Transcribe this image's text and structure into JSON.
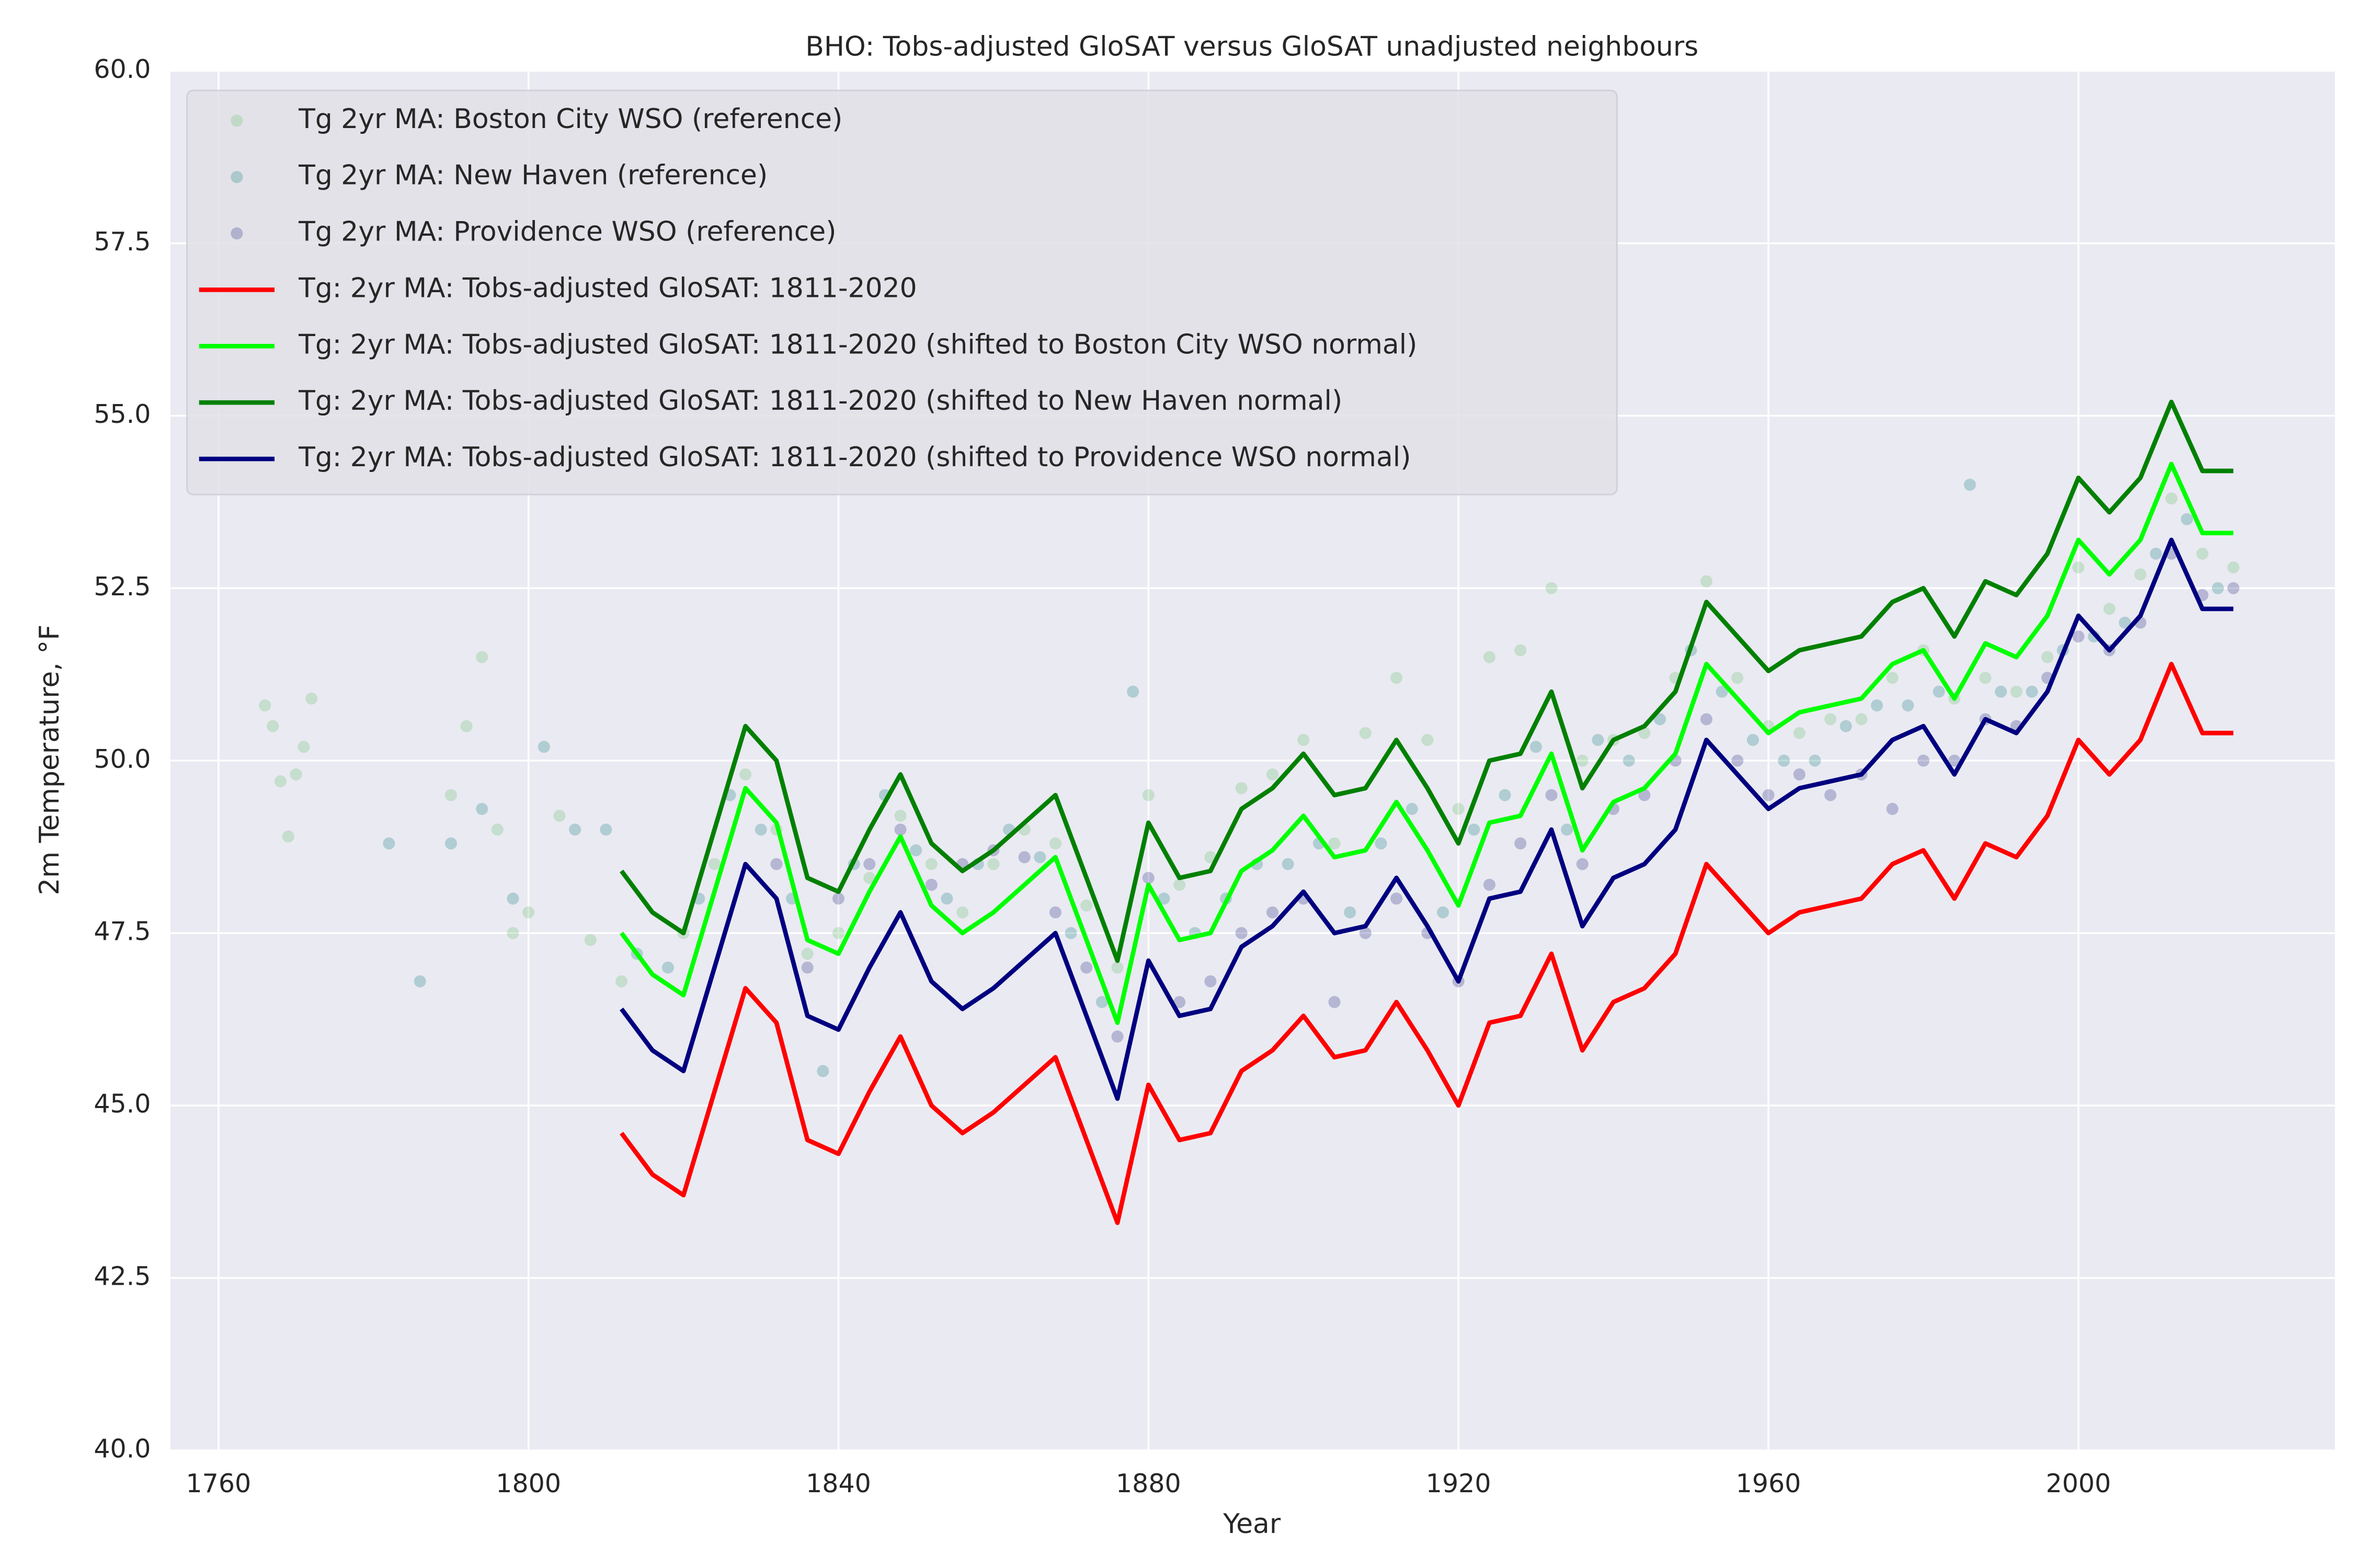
{
  "chart_data": {
    "type": "line",
    "title": "BHO: Tobs-adjusted GloSAT versus GloSAT unadjusted neighbours",
    "x_label": "Year",
    "y_label": "2m Temperature, °F",
    "xlim": [
      1753.8,
      2033.1
    ],
    "ylim": [
      40,
      60
    ],
    "xticks": [
      1760,
      1800,
      1840,
      1880,
      1920,
      1960,
      2000
    ],
    "yticks": [
      {
        "value": 40,
        "label": "40.0"
      },
      {
        "value": 42.5,
        "label": "42.5"
      },
      {
        "value": 45,
        "label": "45.0"
      },
      {
        "value": 47.5,
        "label": "47.5"
      },
      {
        "value": 50,
        "label": "50.0"
      },
      {
        "value": 52.5,
        "label": "52.5"
      },
      {
        "value": 55,
        "label": "55.0"
      },
      {
        "value": 57.5,
        "label": "57.5"
      },
      {
        "value": 60,
        "label": "60.0"
      }
    ],
    "grid": true,
    "legend": "upper left",
    "x": [
      1812,
      1816,
      1820,
      1824,
      1828,
      1832,
      1836,
      1840,
      1844,
      1848,
      1852,
      1856,
      1860,
      1864,
      1868,
      1872,
      1876,
      1880,
      1884,
      1888,
      1892,
      1896,
      1900,
      1904,
      1908,
      1912,
      1916,
      1920,
      1924,
      1928,
      1932,
      1936,
      1940,
      1944,
      1948,
      1952,
      1956,
      1960,
      1964,
      1968,
      1972,
      1976,
      1980,
      1984,
      1988,
      1992,
      1996,
      2000,
      2004,
      2008,
      2012,
      2016,
      2020
    ],
    "series": [
      {
        "name": "Tg 2yr MA: Boston City WSO (reference)",
        "type": "scatter",
        "color": "#74c476",
        "x": [
          1766,
          1767,
          1768,
          1769,
          1770,
          1771,
          1772,
          1790,
          1792,
          1794,
          1796,
          1798,
          1800,
          1804,
          1808,
          1812,
          1820,
          1824,
          1828,
          1832,
          1836,
          1840,
          1844,
          1848,
          1852,
          1856,
          1860,
          1864,
          1868,
          1872,
          1876,
          1880,
          1884,
          1888,
          1892,
          1896,
          1900,
          1904,
          1908,
          1912,
          1916,
          1920,
          1924,
          1928,
          1932,
          1936,
          1940,
          1944,
          1948,
          1952,
          1956,
          1960,
          1964,
          1968,
          1972,
          1976,
          1980,
          1984,
          1988,
          1992,
          1996,
          2000,
          2004,
          2008,
          2012,
          2016,
          2020
        ],
        "values": [
          50.8,
          50.5,
          49.7,
          48.9,
          49.8,
          50.2,
          50.9,
          49.5,
          50.5,
          51.5,
          49.0,
          47.5,
          47.8,
          49.2,
          47.4,
          46.8,
          47.5,
          48.5,
          49.8,
          49.0,
          47.2,
          47.5,
          48.3,
          49.2,
          48.5,
          47.8,
          48.5,
          49.0,
          48.8,
          47.9,
          47.0,
          49.5,
          48.2,
          48.6,
          49.6,
          49.8,
          50.3,
          48.8,
          50.4,
          51.2,
          50.3,
          49.3,
          51.5,
          51.6,
          52.5,
          50.0,
          50.3,
          50.4,
          51.2,
          52.6,
          51.2,
          50.5,
          50.4,
          50.6,
          50.6,
          51.2,
          51.6,
          50.9,
          51.2,
          51.0,
          51.5,
          52.8,
          52.2,
          52.7,
          53.8,
          53.0,
          52.8
        ]
      },
      {
        "name": "Tg 2yr MA: New Haven (reference)",
        "type": "scatter",
        "color": "#2a8c8c",
        "x": [
          1782,
          1786,
          1790,
          1794,
          1798,
          1802,
          1806,
          1810,
          1814,
          1818,
          1822,
          1826,
          1830,
          1834,
          1838,
          1842,
          1846,
          1850,
          1854,
          1858,
          1862,
          1866,
          1870,
          1874,
          1878,
          1882,
          1886,
          1890,
          1894,
          1898,
          1902,
          1906,
          1910,
          1914,
          1918,
          1922,
          1926,
          1930,
          1934,
          1938,
          1942,
          1946,
          1950,
          1954,
          1958,
          1962,
          1966,
          1970,
          1974,
          1978,
          1982,
          1986,
          1990,
          1994,
          1998,
          2002,
          2006,
          2010,
          2014,
          2018
        ],
        "values": [
          48.8,
          46.8,
          48.8,
          49.3,
          48.0,
          50.2,
          49.0,
          49.0,
          47.2,
          47.0,
          48.0,
          49.5,
          49.0,
          48.0,
          45.5,
          48.5,
          49.5,
          48.7,
          48.0,
          48.5,
          49.0,
          48.6,
          47.5,
          46.5,
          51.0,
          48.0,
          47.5,
          48.0,
          48.5,
          48.5,
          48.8,
          47.8,
          48.8,
          49.3,
          47.8,
          49.0,
          49.5,
          50.2,
          49.0,
          50.3,
          50.0,
          50.6,
          51.6,
          51.0,
          50.3,
          50.0,
          50.0,
          50.5,
          50.8,
          50.8,
          51.0,
          54.0,
          51.0,
          51.0,
          51.6,
          51.8,
          52.0,
          53.0,
          53.5,
          52.5
        ]
      },
      {
        "name": "Tg 2yr MA: Providence WSO (reference)",
        "type": "scatter",
        "color": "#3b3f8c",
        "x": [
          1832,
          1836,
          1840,
          1844,
          1848,
          1852,
          1856,
          1860,
          1864,
          1868,
          1872,
          1876,
          1880,
          1884,
          1888,
          1892,
          1896,
          1900,
          1904,
          1908,
          1912,
          1916,
          1920,
          1924,
          1928,
          1932,
          1936,
          1940,
          1944,
          1948,
          1952,
          1956,
          1960,
          1964,
          1968,
          1972,
          1976,
          1980,
          1984,
          1988,
          1992,
          1996,
          2000,
          2004,
          2008,
          2012,
          2016,
          2020
        ],
        "values": [
          48.5,
          47.0,
          48.0,
          48.5,
          49.0,
          48.2,
          48.5,
          48.7,
          48.6,
          47.8,
          47.0,
          46.0,
          48.3,
          46.5,
          46.8,
          47.5,
          47.8,
          48.0,
          46.5,
          47.5,
          48.0,
          47.5,
          46.8,
          48.2,
          48.8,
          49.5,
          48.5,
          49.3,
          49.5,
          50.0,
          50.6,
          50.0,
          49.5,
          49.8,
          49.5,
          49.8,
          49.3,
          50.0,
          50.0,
          50.6,
          50.5,
          51.2,
          51.8,
          51.6,
          52.0,
          53.0,
          52.4,
          52.5
        ]
      },
      {
        "name": "Tg: 2yr MA: Tobs-adjusted GloSAT: 1811-2020",
        "type": "line",
        "color": "#ff0000",
        "values": [
          44.6,
          44.0,
          43.7,
          45.2,
          46.7,
          46.2,
          44.5,
          44.3,
          45.2,
          46.0,
          45.0,
          44.6,
          44.9,
          45.3,
          45.7,
          44.5,
          43.3,
          45.3,
          44.5,
          44.6,
          45.5,
          45.8,
          46.3,
          45.7,
          45.8,
          46.5,
          45.8,
          45.0,
          46.2,
          46.3,
          47.2,
          45.8,
          46.5,
          46.7,
          47.2,
          48.5,
          48.0,
          47.5,
          47.8,
          47.9,
          48.0,
          48.5,
          48.7,
          48.0,
          48.8,
          48.6,
          49.2,
          50.3,
          49.8,
          50.3,
          51.4,
          50.4,
          50.4
        ]
      },
      {
        "name": "Tg: 2yr MA: Tobs-adjusted GloSAT: 1811-2020 (shifted to Boston City WSO normal)",
        "type": "line",
        "color": "#00ff00",
        "values": [
          47.5,
          46.9,
          46.6,
          48.1,
          49.6,
          49.1,
          47.4,
          47.2,
          48.1,
          48.9,
          47.9,
          47.5,
          47.8,
          48.2,
          48.6,
          47.4,
          46.2,
          48.2,
          47.4,
          47.5,
          48.4,
          48.7,
          49.2,
          48.6,
          48.7,
          49.4,
          48.7,
          47.9,
          49.1,
          49.2,
          50.1,
          48.7,
          49.4,
          49.6,
          50.1,
          51.4,
          50.9,
          50.4,
          50.7,
          50.8,
          50.9,
          51.4,
          51.6,
          50.9,
          51.7,
          51.5,
          52.1,
          53.2,
          52.7,
          53.2,
          54.3,
          53.3,
          53.3
        ]
      },
      {
        "name": "Tg: 2yr MA: Tobs-adjusted GloSAT: 1811-2020 (shifted to New Haven normal)",
        "type": "line",
        "color": "#008000",
        "values": [
          48.4,
          47.8,
          47.5,
          49.0,
          50.5,
          50.0,
          48.3,
          48.1,
          49.0,
          49.8,
          48.8,
          48.4,
          48.7,
          49.1,
          49.5,
          48.3,
          47.1,
          49.1,
          48.3,
          48.4,
          49.3,
          49.6,
          50.1,
          49.5,
          49.6,
          50.3,
          49.6,
          48.8,
          50.0,
          50.1,
          51.0,
          49.6,
          50.3,
          50.5,
          51.0,
          52.3,
          51.8,
          51.3,
          51.6,
          51.7,
          51.8,
          52.3,
          52.5,
          51.8,
          52.6,
          52.4,
          53.0,
          54.1,
          53.6,
          54.1,
          55.2,
          54.2,
          54.2
        ]
      },
      {
        "name": "Tg: 2yr MA: Tobs-adjusted GloSAT: 1811-2020 (shifted to Providence WSO normal)",
        "type": "line",
        "color": "#000080",
        "values": [
          46.4,
          45.8,
          45.5,
          47.0,
          48.5,
          48.0,
          46.3,
          46.1,
          47.0,
          47.8,
          46.8,
          46.4,
          46.7,
          47.1,
          47.5,
          46.3,
          45.1,
          47.1,
          46.3,
          46.4,
          47.3,
          47.6,
          48.1,
          47.5,
          47.6,
          48.3,
          47.6,
          46.8,
          48.0,
          48.1,
          49.0,
          47.6,
          48.3,
          48.5,
          49.0,
          50.3,
          49.8,
          49.3,
          49.6,
          49.7,
          49.8,
          50.3,
          50.5,
          49.8,
          50.6,
          50.4,
          51.0,
          52.1,
          51.6,
          52.1,
          53.2,
          52.2,
          52.2
        ]
      }
    ]
  }
}
